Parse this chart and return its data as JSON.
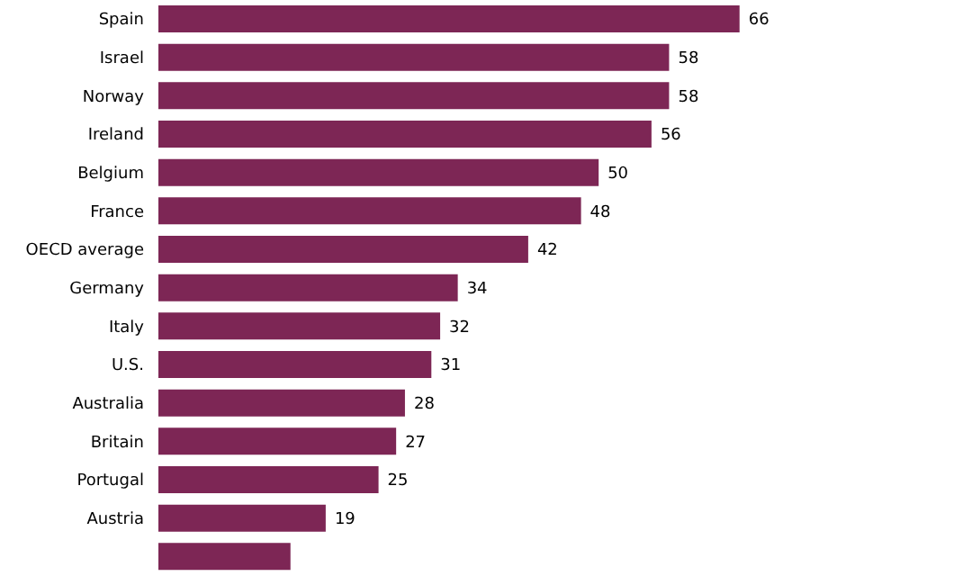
{
  "chart_data": {
    "type": "bar",
    "orientation": "horizontal",
    "categories": [
      "Spain",
      "Israel",
      "Norway",
      "Ireland",
      "Belgium",
      "France",
      "OECD average",
      "Germany",
      "Italy",
      "U.S.",
      "Australia",
      "Britain",
      "Portugal",
      "Austria",
      null
    ],
    "values": [
      66,
      58,
      58,
      56,
      50,
      48,
      42,
      34,
      32,
      31,
      28,
      27,
      25,
      19,
      15
    ],
    "value_labels": [
      "66",
      "58",
      "58",
      "56",
      "50",
      "48",
      "42",
      "34",
      "32",
      "31",
      "28",
      "27",
      "25",
      "19",
      null
    ],
    "color": "#7d2655"
  }
}
